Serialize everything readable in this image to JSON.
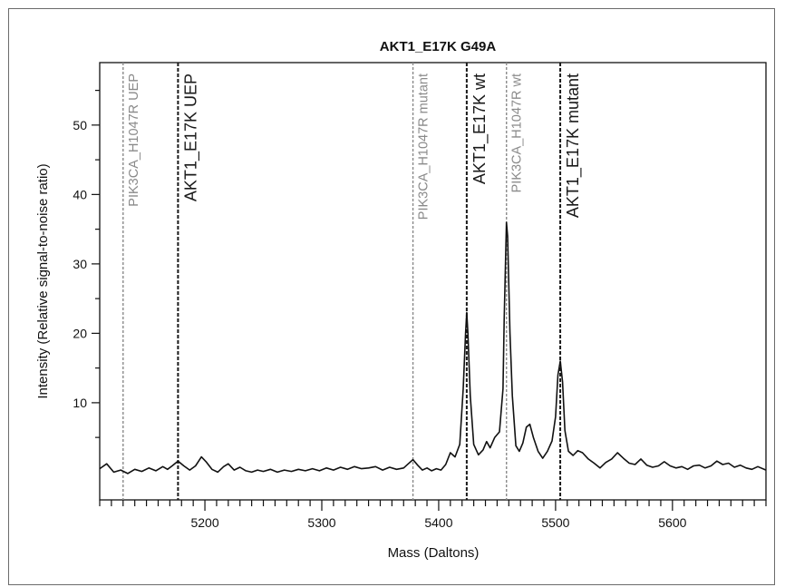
{
  "chart_data": {
    "type": "line",
    "title": "AKT1_E17K G49A",
    "xlabel": "Mass (Daltons)",
    "ylabel": "Intensity (Relative signal-to-noise ratio)",
    "xlim": [
      5110,
      5680
    ],
    "ylim": [
      -4,
      59
    ],
    "x_ticks": [
      5200,
      5300,
      5400,
      5500,
      5600
    ],
    "x_tick_labels": [
      "5200",
      "5300",
      "5400",
      "5500",
      "5600"
    ],
    "y_ticks": [
      10,
      20,
      30,
      40,
      50
    ],
    "y_tick_labels": [
      "10",
      "20",
      "30",
      "40",
      "50"
    ],
    "grid": false,
    "markers": [
      {
        "label": "PIK3CA_H1047R UEP",
        "x": 5130,
        "color": "#8a8a8a"
      },
      {
        "label": "AKT1_E17K UEP",
        "x": 5177,
        "color": "#1a1a1a"
      },
      {
        "label": "PIK3CA_H1047R mutant",
        "x": 5378,
        "color": "#8a8a8a"
      },
      {
        "label": "AKT1_E17K wt",
        "x": 5424,
        "color": "#1a1a1a"
      },
      {
        "label": "PIK3CA_H1047R wt",
        "x": 5458,
        "color": "#8a8a8a"
      },
      {
        "label": "AKT1_E17K mutant",
        "x": 5504,
        "color": "#1a1a1a"
      }
    ],
    "series": [
      {
        "color": "#111111",
        "points": [
          [
            5110,
            0.5
          ],
          [
            5116,
            1.2
          ],
          [
            5122,
            0.0
          ],
          [
            5128,
            0.3
          ],
          [
            5134,
            -0.2
          ],
          [
            5140,
            0.4
          ],
          [
            5146,
            0.1
          ],
          [
            5152,
            0.6
          ],
          [
            5158,
            0.2
          ],
          [
            5164,
            0.8
          ],
          [
            5168,
            0.4
          ],
          [
            5172,
            0.9
          ],
          [
            5177,
            1.6
          ],
          [
            5182,
            0.9
          ],
          [
            5187,
            0.3
          ],
          [
            5192,
            0.9
          ],
          [
            5197,
            2.2
          ],
          [
            5201,
            1.5
          ],
          [
            5206,
            0.4
          ],
          [
            5211,
            0.0
          ],
          [
            5216,
            0.8
          ],
          [
            5220,
            1.2
          ],
          [
            5225,
            0.3
          ],
          [
            5230,
            0.7
          ],
          [
            5235,
            0.2
          ],
          [
            5240,
            0.0
          ],
          [
            5245,
            0.3
          ],
          [
            5250,
            0.1
          ],
          [
            5256,
            0.4
          ],
          [
            5262,
            0.0
          ],
          [
            5268,
            0.3
          ],
          [
            5274,
            0.1
          ],
          [
            5280,
            0.4
          ],
          [
            5286,
            0.2
          ],
          [
            5292,
            0.5
          ],
          [
            5298,
            0.2
          ],
          [
            5304,
            0.6
          ],
          [
            5310,
            0.3
          ],
          [
            5316,
            0.7
          ],
          [
            5322,
            0.4
          ],
          [
            5328,
            0.8
          ],
          [
            5334,
            0.5
          ],
          [
            5340,
            0.6
          ],
          [
            5346,
            0.8
          ],
          [
            5352,
            0.3
          ],
          [
            5358,
            0.7
          ],
          [
            5364,
            0.4
          ],
          [
            5370,
            0.6
          ],
          [
            5374,
            1.2
          ],
          [
            5378,
            1.8
          ],
          [
            5382,
            1.0
          ],
          [
            5386,
            0.3
          ],
          [
            5390,
            0.6
          ],
          [
            5394,
            0.2
          ],
          [
            5398,
            0.5
          ],
          [
            5402,
            0.3
          ],
          [
            5406,
            1.1
          ],
          [
            5410,
            2.8
          ],
          [
            5414,
            2.2
          ],
          [
            5418,
            4.0
          ],
          [
            5421,
            12.0
          ],
          [
            5423,
            20.0
          ],
          [
            5424,
            23.0
          ],
          [
            5425,
            20.0
          ],
          [
            5427,
            11.0
          ],
          [
            5430,
            4.0
          ],
          [
            5434,
            2.5
          ],
          [
            5438,
            3.2
          ],
          [
            5441,
            4.4
          ],
          [
            5444,
            3.5
          ],
          [
            5448,
            5.0
          ],
          [
            5452,
            5.8
          ],
          [
            5455,
            12.0
          ],
          [
            5456,
            22.0
          ],
          [
            5458,
            36.0
          ],
          [
            5459,
            34.0
          ],
          [
            5461,
            20.0
          ],
          [
            5463,
            11.0
          ],
          [
            5466,
            3.8
          ],
          [
            5469,
            3.0
          ],
          [
            5472,
            4.2
          ],
          [
            5475,
            6.5
          ],
          [
            5478,
            6.9
          ],
          [
            5481,
            5.0
          ],
          [
            5485,
            3.0
          ],
          [
            5489,
            2.0
          ],
          [
            5493,
            3.0
          ],
          [
            5497,
            4.5
          ],
          [
            5500,
            8.0
          ],
          [
            5502,
            14.0
          ],
          [
            5504,
            16.0
          ],
          [
            5506,
            13.0
          ],
          [
            5508,
            6.0
          ],
          [
            5511,
            3.0
          ],
          [
            5515,
            2.4
          ],
          [
            5519,
            3.1
          ],
          [
            5523,
            2.8
          ],
          [
            5528,
            1.9
          ],
          [
            5533,
            1.3
          ],
          [
            5538,
            0.6
          ],
          [
            5543,
            1.4
          ],
          [
            5548,
            1.9
          ],
          [
            5553,
            2.8
          ],
          [
            5558,
            2.0
          ],
          [
            5563,
            1.3
          ],
          [
            5568,
            1.1
          ],
          [
            5573,
            1.9
          ],
          [
            5578,
            1.0
          ],
          [
            5583,
            0.7
          ],
          [
            5588,
            0.9
          ],
          [
            5593,
            1.5
          ],
          [
            5598,
            0.9
          ],
          [
            5603,
            0.6
          ],
          [
            5608,
            0.8
          ],
          [
            5613,
            0.4
          ],
          [
            5618,
            0.9
          ],
          [
            5623,
            1.0
          ],
          [
            5628,
            0.6
          ],
          [
            5633,
            0.9
          ],
          [
            5638,
            1.6
          ],
          [
            5643,
            1.1
          ],
          [
            5648,
            1.3
          ],
          [
            5653,
            0.7
          ],
          [
            5658,
            1.0
          ],
          [
            5663,
            0.6
          ],
          [
            5668,
            0.4
          ],
          [
            5673,
            0.8
          ],
          [
            5680,
            0.3
          ]
        ]
      }
    ]
  }
}
